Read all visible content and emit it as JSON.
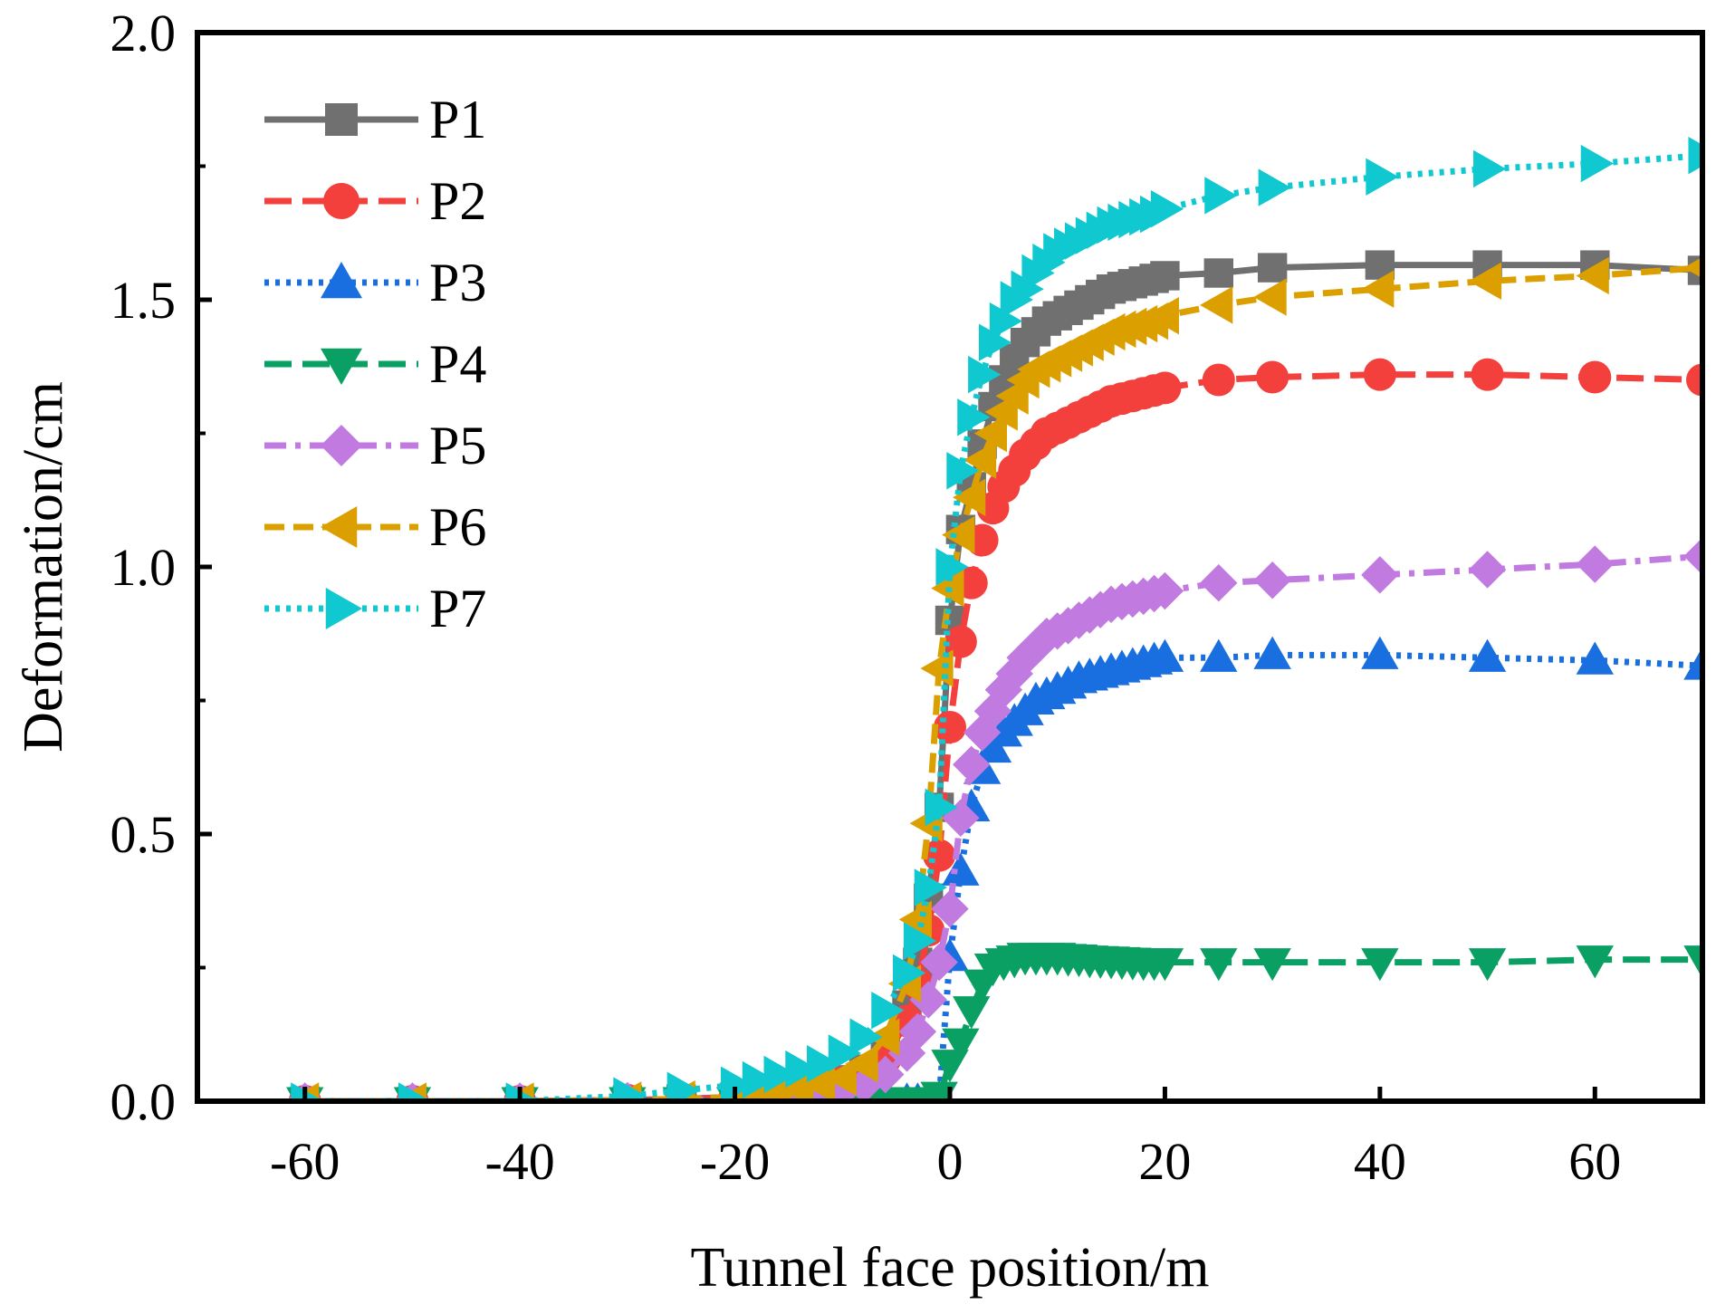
{
  "chart_data": {
    "type": "line",
    "title": "",
    "xlabel": "Tunnel face position/m",
    "ylabel": "Deformation/cm",
    "xlim": [
      -70,
      70
    ],
    "ylim": [
      0,
      2.0
    ],
    "xticks": [
      -60,
      -40,
      -20,
      0,
      20,
      40,
      60
    ],
    "xtick_labels": [
      "-60",
      "-40",
      "-20",
      "0",
      "20",
      "40",
      "60"
    ],
    "yticks": [
      0,
      0.5,
      1.0,
      1.5,
      2.0
    ],
    "ytick_labels": [
      "0.0",
      "0.5",
      "1.0",
      "1.5",
      "2.0"
    ],
    "legend_position": "top-left",
    "x": [
      -60,
      -50,
      -40,
      -30,
      -25,
      -20,
      -18,
      -16,
      -14,
      -12,
      -10,
      -8,
      -6,
      -4,
      -3,
      -2,
      -1,
      0,
      1,
      2,
      3,
      4,
      5,
      6,
      7,
      8,
      9,
      10,
      11,
      12,
      13,
      14,
      15,
      16,
      17,
      18,
      19,
      20,
      25,
      30,
      40,
      50,
      60,
      70
    ],
    "series": [
      {
        "name": "P1",
        "color": "#707070",
        "marker": "square",
        "dash": "solid",
        "values": [
          0,
          0,
          0,
          0.002,
          0.004,
          0.008,
          0.012,
          0.016,
          0.022,
          0.03,
          0.04,
          0.06,
          0.1,
          0.18,
          0.26,
          0.38,
          0.55,
          0.9,
          1.07,
          1.15,
          1.23,
          1.3,
          1.35,
          1.39,
          1.42,
          1.44,
          1.46,
          1.47,
          1.48,
          1.49,
          1.5,
          1.51,
          1.52,
          1.525,
          1.53,
          1.535,
          1.54,
          1.545,
          1.55,
          1.56,
          1.565,
          1.565,
          1.565,
          1.555
        ]
      },
      {
        "name": "P2",
        "color": "#f4403c",
        "marker": "circle",
        "dash": "long-dash",
        "values": [
          0,
          0,
          0,
          0.002,
          0.004,
          0.007,
          0.01,
          0.014,
          0.019,
          0.026,
          0.035,
          0.05,
          0.08,
          0.15,
          0.22,
          0.32,
          0.46,
          0.7,
          0.86,
          0.97,
          1.05,
          1.11,
          1.15,
          1.18,
          1.21,
          1.23,
          1.25,
          1.26,
          1.27,
          1.28,
          1.29,
          1.3,
          1.31,
          1.315,
          1.32,
          1.325,
          1.33,
          1.335,
          1.35,
          1.355,
          1.36,
          1.36,
          1.355,
          1.35
        ]
      },
      {
        "name": "P3",
        "color": "#1a6fe0",
        "marker": "triangle-up",
        "dash": "dotted",
        "values": [
          0,
          0,
          0,
          0,
          0,
          0,
          0,
          0,
          0,
          0,
          0,
          0,
          0,
          0,
          0,
          0,
          0.005,
          0.27,
          0.43,
          0.55,
          0.62,
          0.66,
          0.69,
          0.71,
          0.73,
          0.75,
          0.76,
          0.77,
          0.78,
          0.79,
          0.795,
          0.8,
          0.805,
          0.81,
          0.815,
          0.82,
          0.825,
          0.83,
          0.83,
          0.835,
          0.835,
          0.83,
          0.825,
          0.815
        ]
      },
      {
        "name": "P4",
        "color": "#0aa064",
        "marker": "triangle-down",
        "dash": "long-dash",
        "values": [
          0,
          0,
          0,
          0,
          0,
          0,
          0,
          0,
          0,
          0,
          0,
          0,
          0,
          0,
          0,
          0,
          0.01,
          0.07,
          0.11,
          0.17,
          0.22,
          0.25,
          0.26,
          0.265,
          0.27,
          0.27,
          0.27,
          0.27,
          0.268,
          0.267,
          0.265,
          0.264,
          0.263,
          0.262,
          0.261,
          0.26,
          0.26,
          0.26,
          0.26,
          0.26,
          0.26,
          0.26,
          0.265,
          0.265
        ]
      },
      {
        "name": "P5",
        "color": "#c07ae0",
        "marker": "diamond",
        "dash": "dash-dot",
        "values": [
          0,
          0,
          0,
          0.001,
          0.002,
          0.004,
          0.006,
          0.008,
          0.011,
          0.015,
          0.02,
          0.03,
          0.05,
          0.09,
          0.13,
          0.19,
          0.26,
          0.36,
          0.53,
          0.63,
          0.69,
          0.73,
          0.77,
          0.8,
          0.83,
          0.85,
          0.87,
          0.88,
          0.89,
          0.9,
          0.91,
          0.92,
          0.93,
          0.935,
          0.94,
          0.945,
          0.95,
          0.955,
          0.97,
          0.975,
          0.985,
          0.995,
          1.005,
          1.02
        ]
      },
      {
        "name": "P6",
        "color": "#dba000",
        "marker": "triangle-left",
        "dash": "dashed",
        "values": [
          0,
          0,
          0,
          0.002,
          0.004,
          0.008,
          0.012,
          0.017,
          0.023,
          0.032,
          0.045,
          0.07,
          0.12,
          0.22,
          0.34,
          0.52,
          0.81,
          0.96,
          1.06,
          1.13,
          1.2,
          1.25,
          1.29,
          1.32,
          1.35,
          1.37,
          1.38,
          1.39,
          1.4,
          1.41,
          1.42,
          1.43,
          1.44,
          1.445,
          1.45,
          1.455,
          1.46,
          1.47,
          1.49,
          1.505,
          1.52,
          1.535,
          1.545,
          1.56
        ]
      },
      {
        "name": "P7",
        "color": "#10c8cf",
        "marker": "triangle-right",
        "dash": "dotted",
        "values": [
          0,
          0,
          0,
          0.01,
          0.02,
          0.03,
          0.04,
          0.05,
          0.06,
          0.07,
          0.09,
          0.12,
          0.17,
          0.24,
          0.3,
          0.4,
          0.55,
          1.0,
          1.18,
          1.28,
          1.36,
          1.42,
          1.46,
          1.5,
          1.52,
          1.55,
          1.57,
          1.59,
          1.6,
          1.61,
          1.62,
          1.63,
          1.64,
          1.645,
          1.65,
          1.655,
          1.66,
          1.67,
          1.695,
          1.71,
          1.73,
          1.745,
          1.755,
          1.77
        ]
      }
    ]
  }
}
